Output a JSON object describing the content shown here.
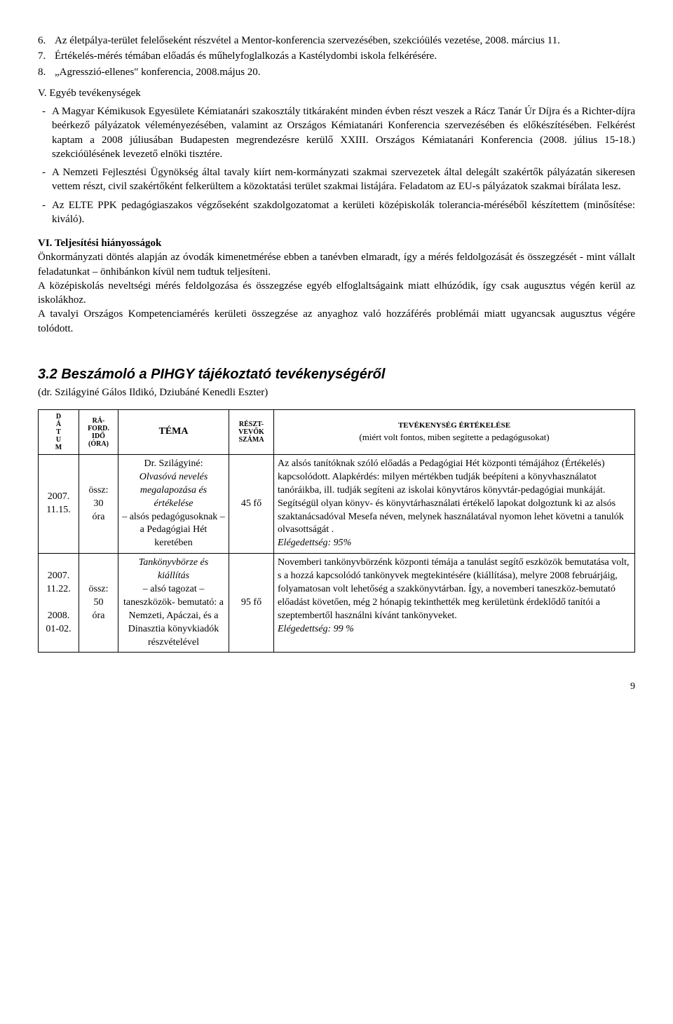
{
  "list": {
    "item6_num": "6.",
    "item6": "Az életpálya-terület felelőseként részvétel a Mentor-konferencia szervezésében, szekcióülés vezetése, 2008. március 11.",
    "item7_num": "7.",
    "item7": "Értékelés-mérés témában előadás és műhelyfoglalkozás a Kastélydombi iskola felkérésére.",
    "item8_num": "8.",
    "item8": "„Agresszió-ellenes\" konferencia, 2008.május 20."
  },
  "section_v": {
    "title": "V. Egyéb tevékenységek",
    "d1": "A Magyar Kémikusok Egyesülete Kémiatanári szakosztály titkáraként minden évben részt veszek a Rácz Tanár Úr Díjra és a Richter-díjra beérkező pályázatok véleményezésében, valamint az Országos Kémiatanári Konferencia szervezésében és előkészítésében.   Felkérést kaptam a 2008 júliusában Budapesten megrendezésre kerülő XXIII. Országos Kémiatanári Konferencia (2008. július 15-18.) szekcióülésének levezető elnöki tisztére.",
    "d2": "A Nemzeti Fejlesztési Ügynökség által tavaly kiírt nem-kormányzati szakmai szervezetek által delegált szakértők pályázatán sikeresen vettem részt, civil szakértőként felkerültem a közoktatási terület szakmai listájára. Feladatom az EU-s pályázatok szakmai bírálata lesz.",
    "d3": "Az ELTE PPK pedagógiaszakos végzőseként szakdolgozatomat a kerületi középiskolák tolerancia-méréséből készítettem (minősítése: kiváló)."
  },
  "section_vi": {
    "title": "VI. Teljesítési hiányosságok",
    "p1": "Önkormányzati döntés alapján az óvodák kimenetmérése ebben a tanévben elmaradt, így a mérés feldolgozását és összegzését - mint vállalt feladatunkat – önhibánkon kívül nem tudtuk teljesíteni.",
    "p2": "A középiskolás neveltségi mérés feldolgozása és összegzése egyéb elfoglaltságaink miatt elhúzódik, így csak augusztus végén kerül az iskolákhoz.",
    "p3": "A tavalyi Országos Kompetenciamérés kerületi összegzése az anyaghoz való hozzáférés problémái miatt ugyancsak augusztus végére tolódott."
  },
  "section32": {
    "title": "3.2 Beszámoló a PIHGY tájékoztató tevékenységéről",
    "subtitle": "(dr. Szilágyiné Gálos Ildikó, Dziubáné Kenedli Eszter)"
  },
  "table": {
    "headers": {
      "date_lines": "D\nÁ\nT\nU\nM",
      "time_label1": "RÁ-",
      "time_label2": "FORD.",
      "time_label3": "IDŐ",
      "time_label4": "(ÓRA)",
      "topic": "TÉMA",
      "part_label1": "RÉSZT-",
      "part_label2": "VEVŐK",
      "part_label3": "SZÁMA",
      "eval_top": "TEVÉKENYSÉG ÉRTÉKELÉSE",
      "eval_bot": "(miért volt fontos, miben segítette a pedagógusokat)"
    },
    "rows": [
      {
        "date": "2007.\n11.15.",
        "time": "össz:\n30\nóra",
        "topic_head": "Dr. Szilágyiné:",
        "topic_sub": "Olvasóvá nevelés megalapozása és értékelése",
        "topic_rest": "– alsós pedagógusoknak – a Pedagógiai Hét keretében",
        "participants": "45 fő",
        "eval": "Az alsós tanítóknak szóló előadás a Pedagógiai Hét központi témájához (Értékelés) kapcsolódott. Alapkérdés: milyen mértékben tudják beépíteni a könyvhasználatot tanóráikba, ill. tudják segíteni az iskolai könyvtáros könyvtár-pedagógiai munkáját. Segítségül olyan könyv- és könyvtárhasználati értékelő lapokat dolgoztunk ki az alsós szaktanácsadóval Mesefa néven, melynek használatával nyomon lehet követni a tanulók olvasottságát .",
        "satisfaction": "Elégedettség: 95%"
      },
      {
        "date": "2007.\n11.22.\n\n2008.\n01-02.",
        "time": "össz:\n50\nóra",
        "topic_head": "",
        "topic_sub": "Tankönyvbörze és kiállítás",
        "topic_rest": "– alsó tagozat – taneszközök- bemutató: a Nemzeti, Apáczai, és a Dinasztia könyvkiadók részvételével",
        "participants": "95 fő",
        "eval": "Novemberi tankönyvbörzénk központi témája a tanulást segítő eszközök bemutatása volt, s a hozzá kapcsolódó tankönyvek megtekintésére (kiállítása), melyre 2008 februárjáig, folyamatosan volt lehetőség a szakkönyvtárban. Így, a novemberi taneszköz-bemutató előadást követően, még 2 hónapig tekinthették meg kerületünk érdeklődő tanítói a szeptembertől használni kívánt tankönyveket.",
        "satisfaction": "Elégedettség: 99 %"
      }
    ]
  },
  "page_number": "9"
}
